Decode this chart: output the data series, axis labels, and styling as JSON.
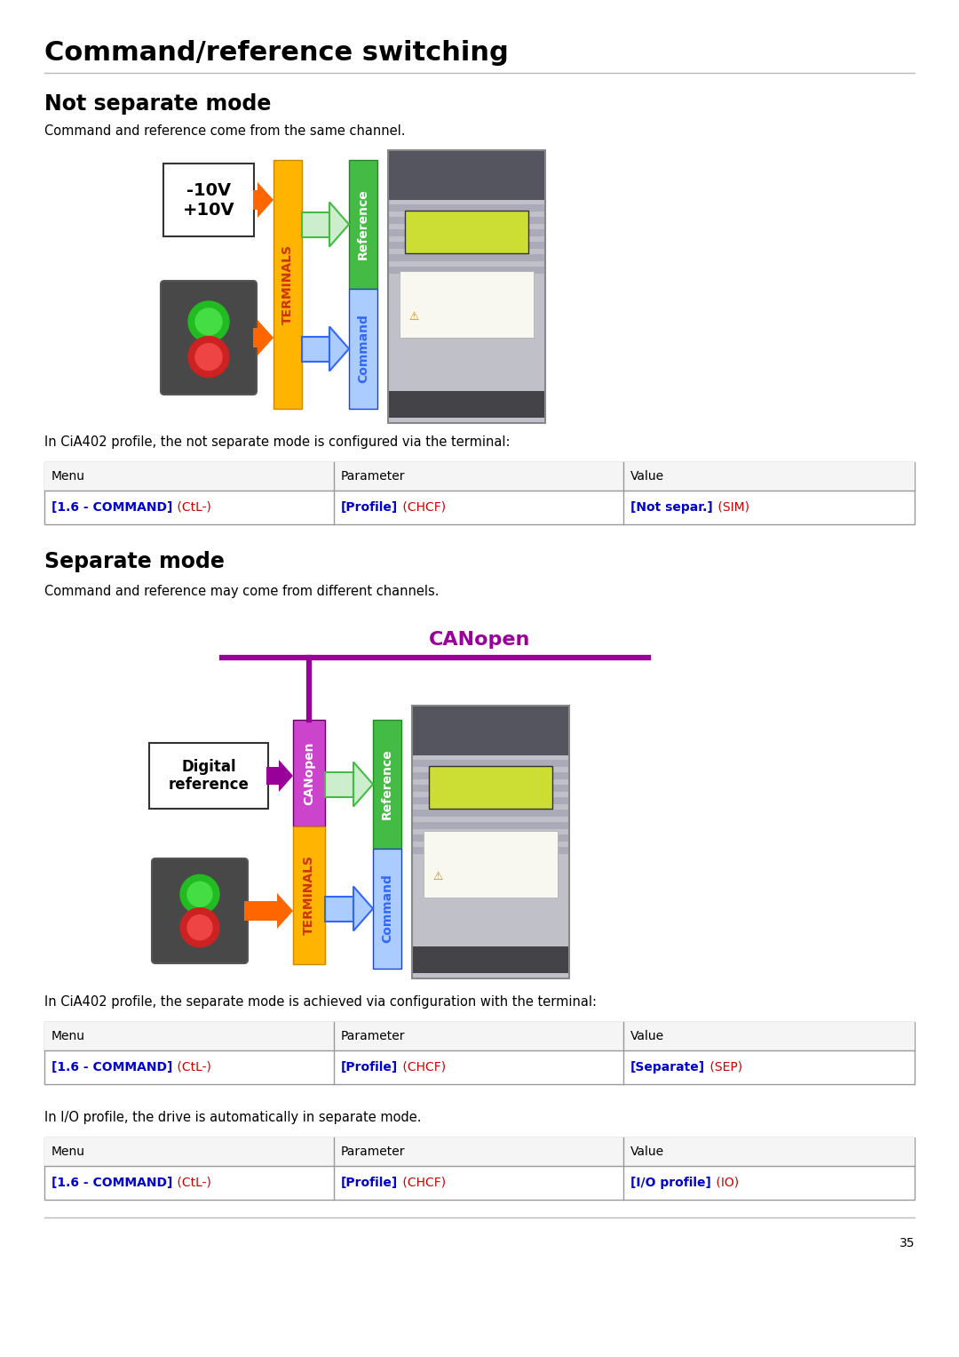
{
  "title": "Command/reference switching",
  "section1_title": "Not separate mode",
  "section1_subtitle": "Command and reference come from the same channel.",
  "section2_title": "Separate mode",
  "section2_subtitle": "Command and reference may come from different channels.",
  "canopen_label": "CANopen",
  "table1_note": "In CiA402 profile, the not separate mode is configured via the terminal:",
  "table2_note": "In CiA402 profile, the separate mode is achieved via configuration with the terminal:",
  "table3_note": "In I/O profile, the drive is automatically in separate mode.",
  "table_headers": [
    "Menu",
    "Parameter",
    "Value"
  ],
  "table1_row": [
    [
      "[1.6 - COMMAND]",
      " (CtL-)"
    ],
    [
      "[Profile]",
      " (CHCF)"
    ],
    [
      "[Not separ.]",
      " (SIM)"
    ]
  ],
  "table2_row": [
    [
      "[1.6 - COMMAND]",
      " (CtL-)"
    ],
    [
      "[Profile]",
      " (CHCF)"
    ],
    [
      "[Separate]",
      " (SEP)"
    ]
  ],
  "table3_row": [
    [
      "[1.6 - COMMAND]",
      " (CtL-)"
    ],
    [
      "[Profile]",
      " (CHCF)"
    ],
    [
      "[I/O profile]",
      " (IO)"
    ]
  ],
  "page_number": "35",
  "bg_color": "#ffffff",
  "title_color": "#000000",
  "section_color": "#000000",
  "body_text_color": "#000000",
  "blue_text": "#0000cc",
  "red_text": "#cc0000",
  "terminals_yellow": "#FFB400",
  "canopen_purple": "#990099",
  "reference_green": "#44bb44",
  "reference_green_bg": "#aaddaa",
  "command_blue": "#3366ff",
  "command_blue_bg": "#aaccff",
  "arrow_orange": "#FF6600",
  "arrow_green_fill": "#cceecc",
  "arrow_green_border": "#44bb44",
  "arrow_blue_fill": "#aaccff",
  "arrow_blue_border": "#3366ff"
}
